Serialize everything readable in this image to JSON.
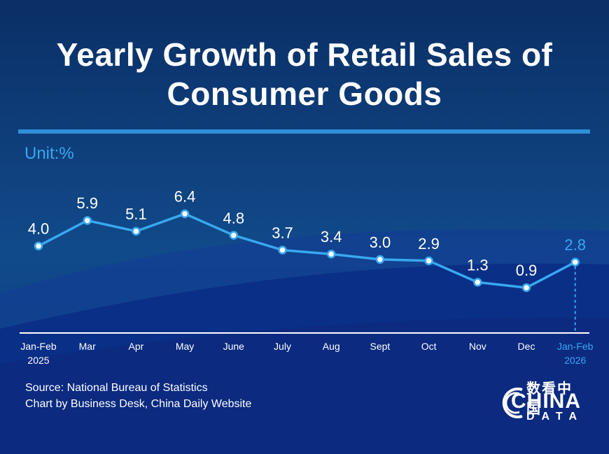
{
  "header": {
    "title_line1": "Yearly Growth of Retail Sales of",
    "title_line2": "Consumer Goods",
    "unit_label": "Unit:%"
  },
  "footer": {
    "source": "Source: National Bureau of Statistics",
    "credit": "Chart by Business Desk, China Daily Website"
  },
  "logo": {
    "cn_text": "数看中国",
    "en_text": "CHINA",
    "sub_text": "DATA"
  },
  "colors": {
    "line": "#38a8f0",
    "highlight": "#38a8f0",
    "label": "#ffffff",
    "axis": "#ffffff"
  },
  "chart_data": {
    "type": "line",
    "title": "Yearly Growth of Retail Sales of Consumer Goods",
    "ylabel": "Unit:%",
    "categories": [
      [
        "Jan-Feb",
        "2025"
      ],
      [
        "Mar"
      ],
      [
        "Apr"
      ],
      [
        "May"
      ],
      [
        "June"
      ],
      [
        "July"
      ],
      [
        "Aug"
      ],
      [
        "Sept"
      ],
      [
        "Oct"
      ],
      [
        "Nov"
      ],
      [
        "Dec"
      ],
      [
        "Jan-Feb",
        "2026"
      ]
    ],
    "values": [
      4.0,
      5.9,
      5.1,
      6.4,
      4.8,
      3.7,
      3.4,
      3.0,
      2.9,
      1.3,
      0.9,
      2.8
    ],
    "value_labels": [
      "4.0",
      "5.9",
      "5.1",
      "6.4",
      "4.8",
      "3.7",
      "3.4",
      "3.0",
      "2.9",
      "1.3",
      "0.9",
      "2.8"
    ],
    "highlight_index": 11,
    "grid": false,
    "legend": "none"
  }
}
